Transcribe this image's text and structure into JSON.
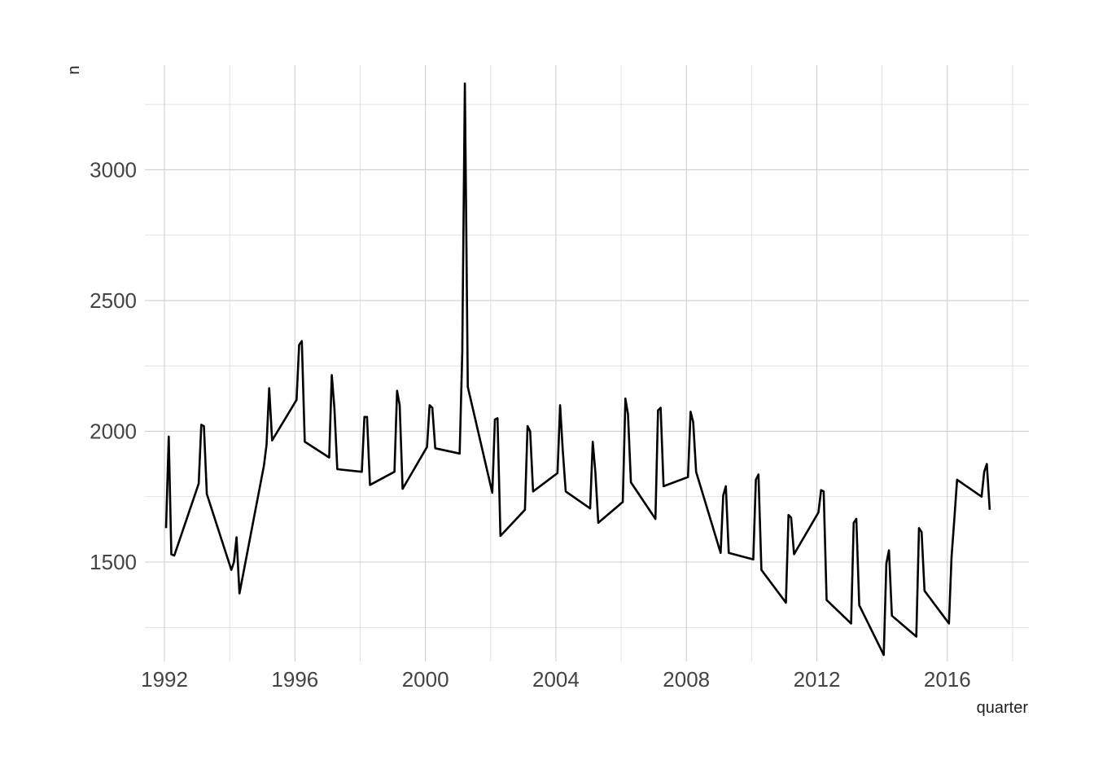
{
  "chart_data": {
    "type": "line",
    "title": "",
    "xlabel": "quarter",
    "ylabel": "n",
    "xlim": [
      1991.4,
      2018.5
    ],
    "ylim": [
      1120,
      3400
    ],
    "x_ticks": [
      1992,
      1996,
      2000,
      2004,
      2008,
      2012,
      2016
    ],
    "x_tick_labels": [
      "1992",
      "1996",
      "2000",
      "2004",
      "2008",
      "2012",
      "2016"
    ],
    "y_ticks": [
      1500,
      2000,
      2500,
      3000
    ],
    "y_tick_labels": [
      "1500",
      "2000",
      "2500",
      "3000"
    ],
    "grid": true,
    "legend": "none",
    "color": "#000000",
    "series": [
      {
        "x": [
          1992.05,
          1992.13,
          1992.21,
          1992.3,
          1993.05,
          1993.13,
          1993.21,
          1993.3,
          1994.05,
          1994.13,
          1994.21,
          1994.3,
          1995.05,
          1995.13,
          1995.21,
          1995.3,
          1996.05,
          1996.13,
          1996.21,
          1996.3,
          1997.05,
          1997.13,
          1997.21,
          1997.3,
          1998.05,
          1998.13,
          1998.21,
          1998.3,
          1999.05,
          1999.13,
          1999.21,
          1999.3,
          2000.05,
          2000.13,
          2000.21,
          2000.3,
          2001.05,
          2001.13,
          2001.21,
          2001.3,
          2002.05,
          2002.13,
          2002.21,
          2002.3,
          2003.05,
          2003.13,
          2003.21,
          2003.3,
          2004.05,
          2004.13,
          2004.21,
          2004.3,
          2005.05,
          2005.13,
          2005.21,
          2005.3,
          2006.05,
          2006.13,
          2006.21,
          2006.3,
          2007.05,
          2007.13,
          2007.21,
          2007.3,
          2008.05,
          2008.13,
          2008.21,
          2008.3,
          2009.05,
          2009.13,
          2009.21,
          2009.3,
          2010.05,
          2010.13,
          2010.21,
          2010.3,
          2011.05,
          2011.13,
          2011.21,
          2011.3,
          2012.05,
          2012.13,
          2012.21,
          2012.3,
          2013.05,
          2013.13,
          2013.21,
          2013.3,
          2014.05,
          2014.13,
          2014.21,
          2014.3,
          2015.05,
          2015.13,
          2015.21,
          2015.3,
          2016.05,
          2016.13,
          2016.21,
          2016.3,
          2017.05,
          2017.13,
          2017.21,
          2017.3
        ],
        "y": [
          1630,
          1980,
          1530,
          1525,
          1800,
          2025,
          2020,
          1760,
          1470,
          1500,
          1595,
          1380,
          1870,
          1950,
          2165,
          1965,
          2120,
          2330,
          2345,
          1960,
          1900,
          2215,
          2090,
          1855,
          1845,
          2055,
          2055,
          1795,
          1845,
          2155,
          2100,
          1780,
          1940,
          2100,
          2090,
          1935,
          1915,
          2300,
          3330,
          2170,
          1765,
          2045,
          2050,
          1600,
          1700,
          2020,
          2000,
          1770,
          1840,
          2100,
          1930,
          1770,
          1705,
          1960,
          1845,
          1650,
          1730,
          2125,
          2065,
          1805,
          1665,
          2080,
          2090,
          1790,
          1825,
          2075,
          2035,
          1845,
          1535,
          1755,
          1790,
          1535,
          1510,
          1815,
          1835,
          1470,
          1345,
          1680,
          1670,
          1530,
          1690,
          1775,
          1770,
          1355,
          1265,
          1650,
          1665,
          1335,
          1145,
          1495,
          1545,
          1295,
          1215,
          1630,
          1615,
          1390,
          1265,
          1520,
          1655,
          1815,
          1750,
          1845,
          1875,
          1700
        ]
      }
    ]
  }
}
